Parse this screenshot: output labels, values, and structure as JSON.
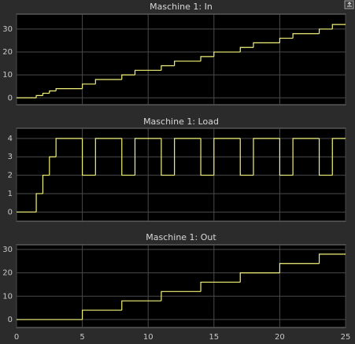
{
  "chart_data": [
    {
      "type": "line",
      "step": "post",
      "title": "Maschine 1: In",
      "x": [
        0,
        1.5,
        2,
        2.5,
        3,
        5,
        6,
        8,
        9,
        11,
        12,
        14,
        15,
        17,
        18,
        20,
        21,
        23,
        24
      ],
      "values": [
        0,
        1,
        2,
        3,
        4,
        6,
        8,
        10,
        12,
        14,
        16,
        18,
        20,
        22,
        24,
        26,
        28,
        30,
        32
      ],
      "color": "#f2f27a",
      "xlim": [
        0,
        25
      ],
      "ylim": [
        -3,
        36.5
      ],
      "yticks": [
        0,
        10,
        20,
        30
      ],
      "xticks": [
        0,
        5,
        10,
        15,
        20,
        25
      ],
      "xtick_labels": false,
      "grid": true
    },
    {
      "type": "line",
      "step": "post",
      "title": "Maschine 1: Load",
      "x": [
        0,
        1.5,
        2,
        2.5,
        3,
        5,
        6,
        8,
        9,
        11,
        12,
        14,
        15,
        17,
        18,
        20,
        21,
        23,
        24
      ],
      "values": [
        0,
        1,
        2,
        3,
        4,
        2,
        4,
        2,
        4,
        2,
        4,
        2,
        4,
        2,
        4,
        2,
        4,
        2,
        4
      ],
      "color": "#f2f27a",
      "xlim": [
        0,
        25
      ],
      "ylim": [
        -0.5,
        4.55
      ],
      "yticks": [
        0,
        1,
        2,
        3,
        4
      ],
      "xticks": [
        0,
        5,
        10,
        15,
        20,
        25
      ],
      "xtick_labels": false,
      "grid": true
    },
    {
      "type": "line",
      "step": "post",
      "title": "Maschine 1: Out",
      "x": [
        0,
        5,
        8,
        11,
        14,
        17,
        20,
        23
      ],
      "values": [
        0,
        4,
        8,
        12,
        16,
        20,
        24,
        28
      ],
      "color": "#f2f27a",
      "xlim": [
        0,
        25
      ],
      "ylim": [
        -3.4,
        32
      ],
      "yticks": [
        0,
        10,
        20,
        30
      ],
      "xticks": [
        0,
        5,
        10,
        15,
        20,
        25
      ],
      "xtick_labels": true,
      "grid": true
    }
  ]
}
